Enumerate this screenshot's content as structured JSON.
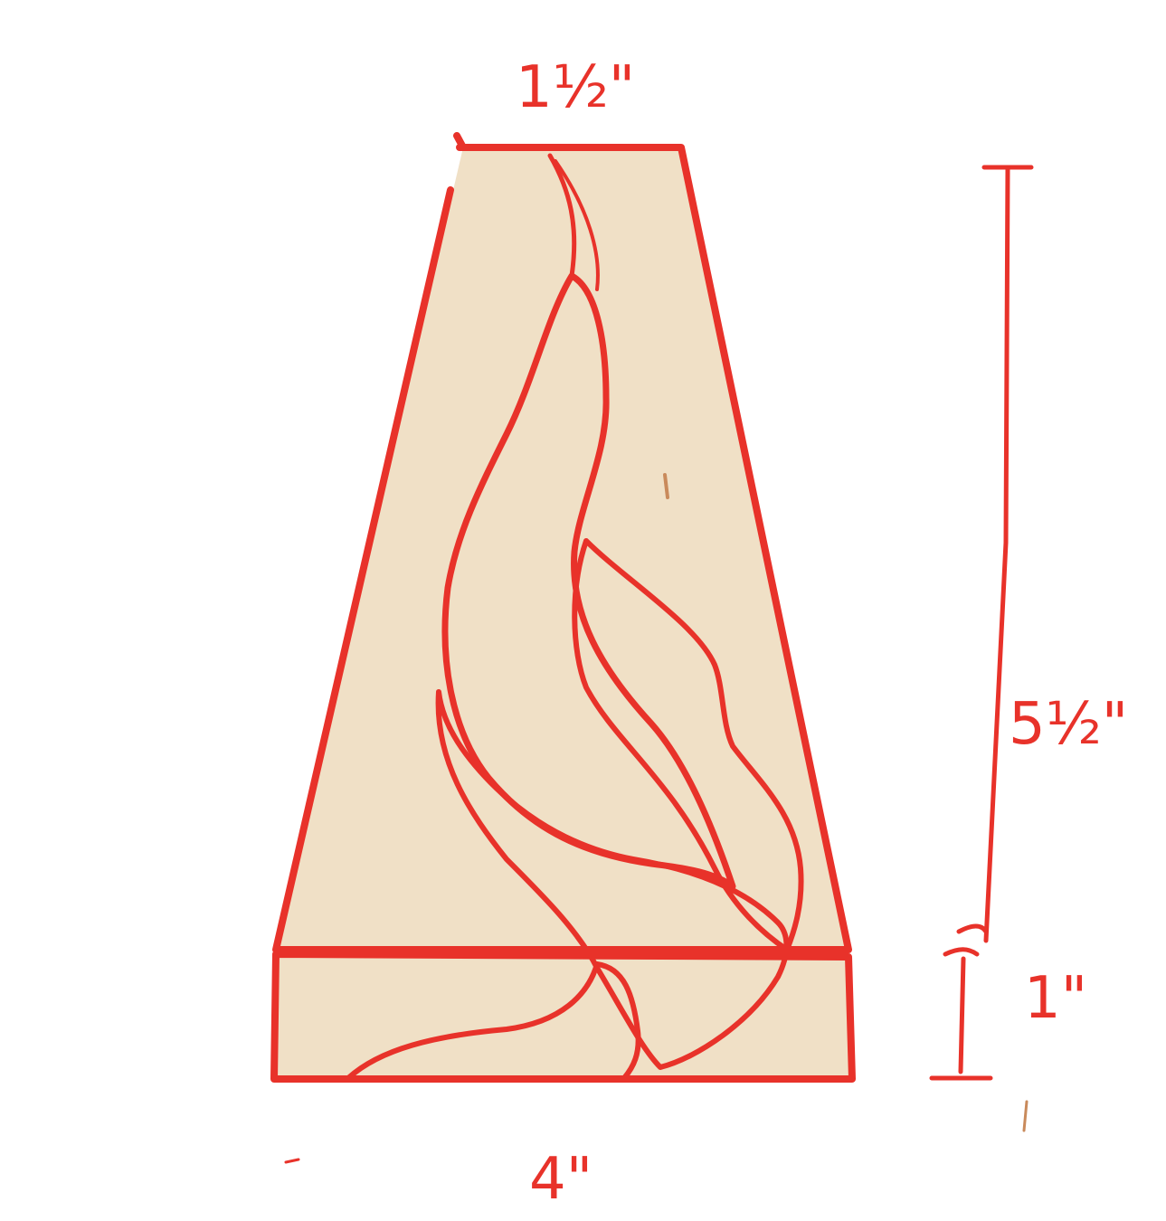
{
  "drawing": {
    "dimensions": {
      "top_width": "1½\"",
      "bottom_width": "4\"",
      "upper_height": "5½\"",
      "base_height": "1\""
    },
    "colors": {
      "outline": "#e8322a",
      "background_fill": "#f0e0c6",
      "flame_dark": "#951c14",
      "flame_gold": "#cf9b4b",
      "flame_mid": "#bf5a33"
    }
  }
}
